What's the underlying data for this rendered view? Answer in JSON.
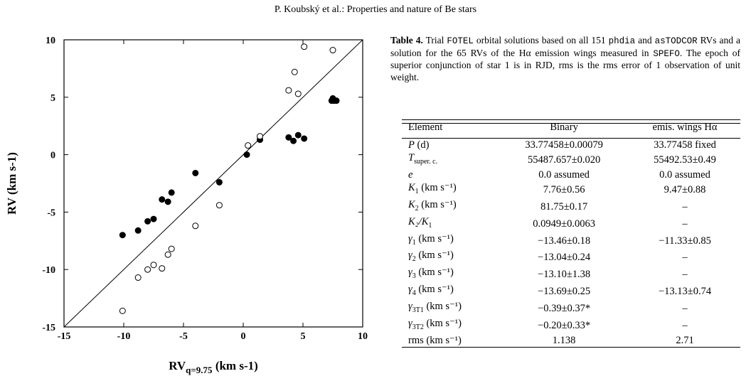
{
  "header": "P. Koubský et al.: Properties and nature of Be stars",
  "caption": {
    "label": "Table 4.",
    "p1": " Trial ",
    "code1": "FOTEL",
    "p2": " orbital solutions based on all 151 ",
    "code2": "phdia",
    "p3": " and ",
    "code3": "asTODCOR",
    "p4": " RVs and a solution for the 65 RVs of the Hα emission wings measured in ",
    "code4": "SPEFO",
    "p5": ". The epoch of superior conjunction of star 1 is in RJD, rms is the rms error of 1 observation of unit weight."
  },
  "table": {
    "headers": [
      "Element",
      "Binary",
      "emis. wings Hα"
    ],
    "rows": [
      {
        "sym": "P",
        "sub": "",
        "unit": " (d)",
        "binary": "33.77458±0.00079",
        "wings": "33.77458 fixed"
      },
      {
        "sym": "T",
        "sub": "super. c.",
        "unit": "",
        "binary": "55487.657±0.020",
        "wings": "55492.53±0.49"
      },
      {
        "sym": "e",
        "sub": "",
        "unit": "",
        "binary": "0.0 assumed",
        "wings": "0.0 assumed"
      },
      {
        "sym": "K",
        "sub": "1",
        "unit": " (km s⁻¹)",
        "binary": "7.76±0.56",
        "wings": "9.47±0.88"
      },
      {
        "sym": "K",
        "sub": "2",
        "unit": " (km s⁻¹)",
        "binary": "81.75±0.17",
        "wings": "–"
      },
      {
        "sym": "K₂/K",
        "sub": "1",
        "unit": "",
        "binary": "0.0949±0.0063",
        "wings": "–"
      },
      {
        "sym": "γ",
        "sub": "1",
        "unit": " (km s⁻¹)",
        "binary": "−13.46±0.18",
        "wings": "−11.33±0.85"
      },
      {
        "sym": "γ",
        "sub": "2",
        "unit": " (km s⁻¹)",
        "binary": "−13.04±0.24",
        "wings": "–"
      },
      {
        "sym": "γ",
        "sub": "3",
        "unit": " (km s⁻¹)",
        "binary": "−13.10±1.38",
        "wings": "–"
      },
      {
        "sym": "γ",
        "sub": "4",
        "unit": " (km s⁻¹)",
        "binary": "−13.69±0.25",
        "wings": "−13.13±0.74"
      },
      {
        "sym": "γ",
        "sub": "3T1",
        "unit": " (km s⁻¹)",
        "binary": "−0.39±0.37*",
        "wings": "–"
      },
      {
        "sym": "γ",
        "sub": "3T2",
        "unit": " (km s⁻¹)",
        "binary": "−0.20±0.33*",
        "wings": "–"
      },
      {
        "sym": "rms",
        "sub": "",
        "unit": " (km s⁻¹)",
        "binary": "1.138",
        "wings": "2.71"
      }
    ]
  },
  "chart_data": {
    "type": "scatter",
    "xlabel": "RV",
    "xlabel_sub": "q=9.75",
    "xlabel_unit": " (km s-1)",
    "ylabel": "RV (km s-1)",
    "xlim": [
      -15,
      10
    ],
    "ylim": [
      -15,
      10
    ],
    "xticks": [
      -15,
      -10,
      -5,
      0,
      5,
      10
    ],
    "yticks": [
      -15,
      -10,
      -5,
      0,
      5,
      10
    ],
    "diagonal": [
      [
        -15,
        -15
      ],
      [
        10,
        10
      ]
    ],
    "series": [
      {
        "marker": "filled",
        "points": [
          [
            -10.1,
            -7.0
          ],
          [
            -8.8,
            -6.6
          ],
          [
            -8.0,
            -5.8
          ],
          [
            -7.5,
            -5.6
          ],
          [
            -6.8,
            -3.9
          ],
          [
            -6.3,
            -4.1
          ],
          [
            -6.0,
            -3.3
          ],
          [
            -4.0,
            -1.6
          ],
          [
            -2.0,
            -2.4
          ],
          [
            0.3,
            0.0
          ],
          [
            1.4,
            1.3
          ],
          [
            3.8,
            1.5
          ],
          [
            4.2,
            1.2
          ],
          [
            4.6,
            1.7
          ],
          [
            5.1,
            1.4
          ],
          [
            7.4,
            4.7
          ],
          [
            7.5,
            4.9
          ],
          [
            7.6,
            4.7
          ],
          [
            7.8,
            4.7
          ]
        ]
      },
      {
        "marker": "open",
        "points": [
          [
            -10.1,
            -13.6
          ],
          [
            -8.8,
            -10.7
          ],
          [
            -8.0,
            -10.0
          ],
          [
            -7.5,
            -9.6
          ],
          [
            -6.8,
            -9.9
          ],
          [
            -6.3,
            -8.7
          ],
          [
            -6.0,
            -8.2
          ],
          [
            -4.0,
            -6.2
          ],
          [
            -2.0,
            -4.4
          ],
          [
            0.4,
            0.8
          ],
          [
            1.4,
            1.6
          ],
          [
            3.8,
            5.6
          ],
          [
            4.3,
            7.2
          ],
          [
            4.6,
            5.3
          ],
          [
            5.1,
            9.4
          ],
          [
            7.5,
            9.1
          ]
        ]
      }
    ]
  }
}
